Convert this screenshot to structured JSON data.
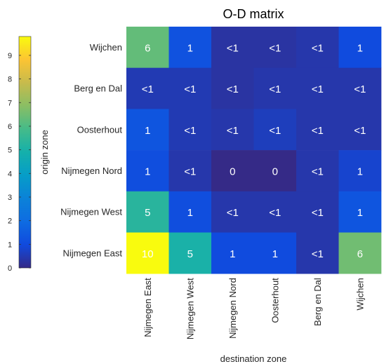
{
  "chart_data": {
    "type": "heatmap",
    "title": "O-D matrix",
    "xlabel": "destination zone",
    "ylabel": "origin zone",
    "rows": [
      "Wijchen",
      "Berg en Dal",
      "Oosterhout",
      "Nijmegen Nord",
      "Nijmegen West",
      "Nijmegen East"
    ],
    "columns": [
      "Nijmegen East",
      "Nijmegen West",
      "Nijmegen Nord",
      "Oosterhout",
      "Berg en Dal",
      "Wijchen"
    ],
    "values": [
      [
        6.3,
        1.2,
        0.3,
        0.3,
        0.4,
        1.0
      ],
      [
        0.5,
        0.5,
        0.3,
        0.4,
        0.4,
        0.4
      ],
      [
        1.3,
        0.5,
        0.4,
        0.6,
        0.4,
        0.4
      ],
      [
        1.1,
        0.4,
        0.0,
        0.0,
        0.4,
        0.8
      ],
      [
        5.3,
        1.1,
        0.4,
        0.4,
        0.4,
        1.3
      ],
      [
        9.8,
        5.0,
        1.0,
        1.0,
        0.4,
        6.5
      ]
    ],
    "labels": [
      [
        "6",
        "1",
        "<1",
        "<1",
        "<1",
        "1"
      ],
      [
        "<1",
        "<1",
        "<1",
        "<1",
        "<1",
        "<1"
      ],
      [
        "1",
        "<1",
        "<1",
        "<1",
        "<1",
        "<1"
      ],
      [
        "1",
        "<1",
        "0",
        "0",
        "<1",
        "1"
      ],
      [
        "5",
        "1",
        "<1",
        "<1",
        "<1",
        "1"
      ],
      [
        "10",
        "5",
        "1",
        "1",
        "<1",
        "6"
      ]
    ],
    "colorbar": {
      "colormap": "parula",
      "range": [
        0,
        9.8
      ],
      "ticks": [
        "0",
        "1",
        "2",
        "3",
        "4",
        "5",
        "6",
        "7",
        "8",
        "9"
      ],
      "position": "left"
    },
    "grid": false
  }
}
